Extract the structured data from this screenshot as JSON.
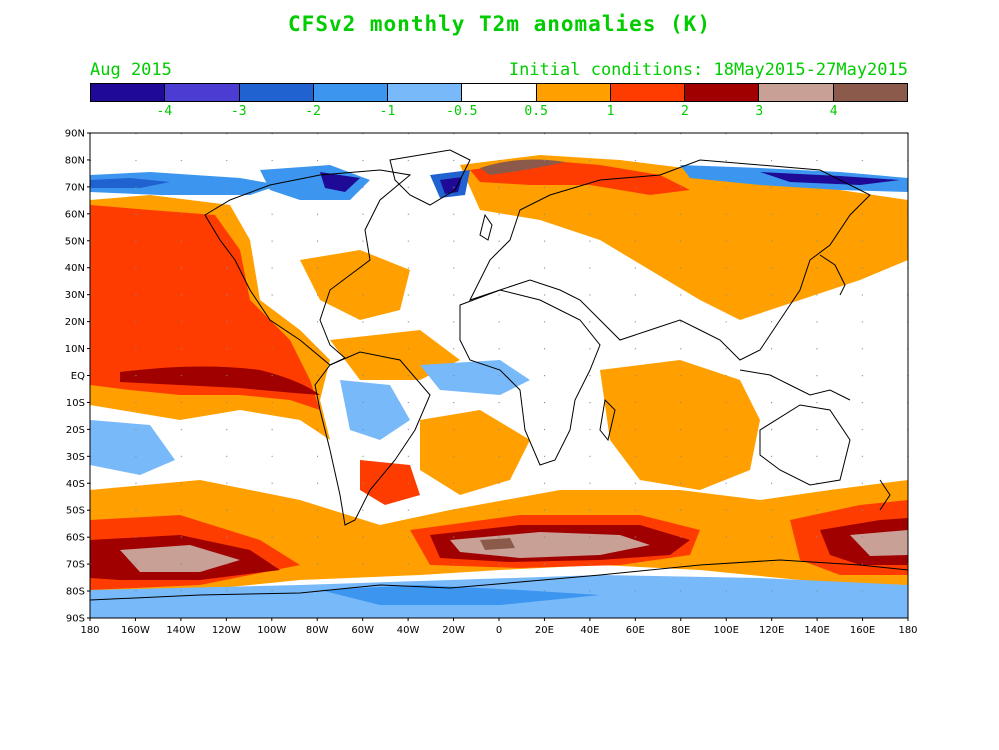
{
  "title": "CFSv2 monthly T2m anomalies (K)",
  "valid_month": "Aug 2015",
  "initial_conditions": "Initial conditions: 18May2015-27May2015",
  "colorbar": {
    "colors": [
      "#1e0a96",
      "#4b3cd2",
      "#1f62d0",
      "#3c96f0",
      "#78b9fa",
      "#ffffff",
      "#ffa000",
      "#ff3c00",
      "#a00000",
      "#c8a096",
      "#8c5a4b"
    ],
    "labels": [
      "-4",
      "-3",
      "-2",
      "-1",
      "-0.5",
      "0.5",
      "1",
      "2",
      "3",
      "4"
    ]
  },
  "axes": {
    "lat_labels": [
      "90N",
      "80N",
      "70N",
      "60N",
      "50N",
      "40N",
      "30N",
      "20N",
      "10N",
      "EQ",
      "10S",
      "20S",
      "30S",
      "40S",
      "50S",
      "60S",
      "70S",
      "80S",
      "90S"
    ],
    "lon_labels": [
      "180",
      "160W",
      "140W",
      "120W",
      "100W",
      "80W",
      "60W",
      "40W",
      "20W",
      "0",
      "20E",
      "40E",
      "60E",
      "80E",
      "100E",
      "120E",
      "140E",
      "160E",
      "180"
    ]
  }
}
